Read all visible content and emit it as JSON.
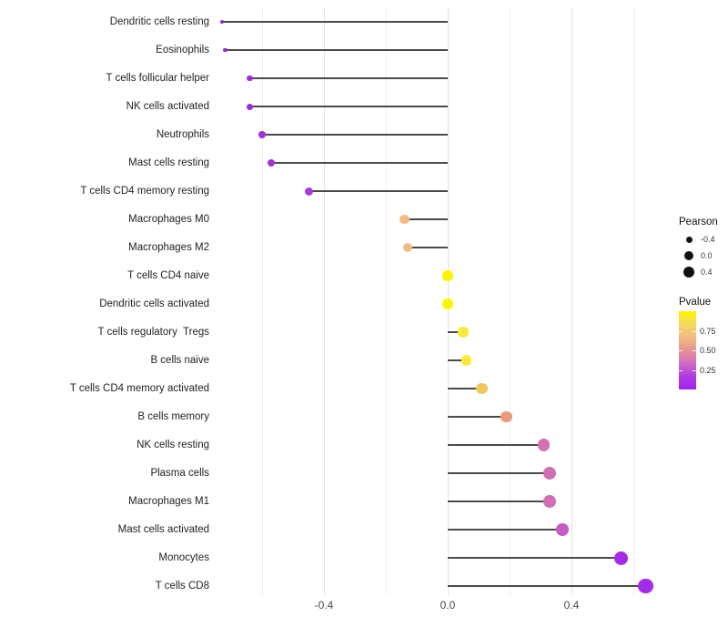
{
  "chart_data": {
    "type": "lollipop",
    "title": "",
    "xlabel": "",
    "ylabel": "",
    "xlim": [
      -0.75,
      0.72
    ],
    "grid": true,
    "baseline_value": 0.0,
    "x_ticks": [
      {
        "label": "-0.4",
        "value": -0.4
      },
      {
        "label": "0.0",
        "value": 0.0
      },
      {
        "label": "0.4",
        "value": 0.4
      }
    ],
    "gridline_values": [
      -0.6,
      -0.4,
      -0.2,
      0.0,
      0.2,
      0.4,
      0.6
    ],
    "major_gridline_values": [
      -0.4,
      0.0,
      0.4
    ],
    "points": [
      {
        "label": "Dendritic cells resting",
        "pearson": -0.73,
        "pvalue_est": 0.1,
        "color": "#8E2BC9",
        "radius": 2.2
      },
      {
        "label": "Eosinophils",
        "pearson": -0.72,
        "pvalue_est": 0.1,
        "color": "#8E2BC9",
        "radius": 2.4
      },
      {
        "label": "T cells follicular helper",
        "pearson": -0.64,
        "pvalue_est": 0.12,
        "color": "#9930D4",
        "radius": 3.4
      },
      {
        "label": "NK cells activated",
        "pearson": -0.64,
        "pvalue_est": 0.12,
        "color": "#9930D4",
        "radius": 3.5
      },
      {
        "label": "Neutrophils",
        "pearson": -0.6,
        "pvalue_est": 0.13,
        "color": "#9C33D6",
        "radius": 3.8
      },
      {
        "label": "Mast cells resting",
        "pearson": -0.57,
        "pvalue_est": 0.14,
        "color": "#9E36D8",
        "radius": 4.0
      },
      {
        "label": "T cells CD4 memory resting",
        "pearson": -0.45,
        "pvalue_est": 0.17,
        "color": "#A83CDB",
        "radius": 4.5
      },
      {
        "label": "Macrophages M0",
        "pearson": -0.14,
        "pvalue_est": 0.65,
        "color": "#F0BC80",
        "radius": 5.2
      },
      {
        "label": "Macrophages M2",
        "pearson": -0.13,
        "pvalue_est": 0.65,
        "color": "#F0BC80",
        "radius": 5.2
      },
      {
        "label": "T cells CD4 naive",
        "pearson": 0.0,
        "pvalue_est": 0.97,
        "color": "#FCF402",
        "radius": 5.6
      },
      {
        "label": "Dendritic cells activated",
        "pearson": 0.0,
        "pvalue_est": 0.97,
        "color": "#FCF402",
        "radius": 5.6
      },
      {
        "label": "T cells regulatory  Tregs",
        "pearson": 0.05,
        "pvalue_est": 0.88,
        "color": "#F9E93C",
        "radius": 5.8
      },
      {
        "label": "B cells naive",
        "pearson": 0.06,
        "pvalue_est": 0.88,
        "color": "#F9E93C",
        "radius": 5.8
      },
      {
        "label": "T cells CD4 memory activated",
        "pearson": 0.11,
        "pvalue_est": 0.72,
        "color": "#EEC95F",
        "radius": 6.2
      },
      {
        "label": "B cells memory",
        "pearson": 0.19,
        "pvalue_est": 0.55,
        "color": "#E89A7C",
        "radius": 6.4
      },
      {
        "label": "NK cells resting",
        "pearson": 0.31,
        "pvalue_est": 0.4,
        "color": "#D170B2",
        "radius": 6.7
      },
      {
        "label": "Plasma cells",
        "pearson": 0.33,
        "pvalue_est": 0.4,
        "color": "#D16FB4",
        "radius": 6.9
      },
      {
        "label": "Macrophages M1",
        "pearson": 0.33,
        "pvalue_est": 0.4,
        "color": "#D16FB4",
        "radius": 6.9
      },
      {
        "label": "Mast cells activated",
        "pearson": 0.37,
        "pvalue_est": 0.3,
        "color": "#C55CC6",
        "radius": 7.1
      },
      {
        "label": "Monocytes",
        "pearson": 0.56,
        "pvalue_est": 0.08,
        "color": "#A62BE5",
        "radius": 7.5
      },
      {
        "label": "T cells CD8",
        "pearson": 0.64,
        "pvalue_est": 0.05,
        "color": "#A32CE8",
        "radius": 8.2
      }
    ],
    "legend": {
      "size": {
        "title": "Pearson",
        "dot_color": "#111111",
        "entries": [
          {
            "label": "-0.4",
            "radius": 3.5
          },
          {
            "label": "0.0",
            "radius": 5.0
          },
          {
            "label": "0.4",
            "radius": 6.2
          }
        ]
      },
      "color": {
        "title": "Pvalue",
        "range": [
          0,
          1
        ],
        "ticks": [
          {
            "label": "0.75",
            "value": 0.75
          },
          {
            "label": "0.50",
            "value": 0.5
          },
          {
            "label": "0.25",
            "value": 0.25
          }
        ],
        "gradient_stops": [
          "#FCF402",
          "#F7DD55",
          "#F2C47E",
          "#EBA489",
          "#DE84A8",
          "#C95ECB",
          "#AD33E6",
          "#A326EC"
        ]
      }
    },
    "colors": {
      "stem": "#4a4a4a",
      "grid_major": "#e2e2e2",
      "grid_minor": "#efefef",
      "axis_text": "#4a4a4a",
      "label_text": "#222222"
    }
  }
}
